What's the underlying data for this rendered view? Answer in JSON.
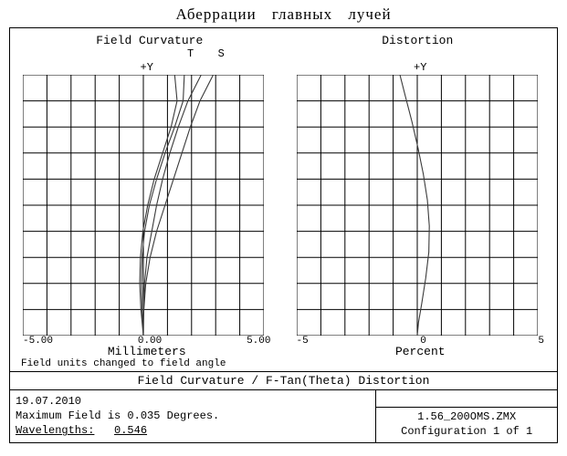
{
  "page_title": "Аберрации главных лучей",
  "outer_frame": {
    "border_color": "#000000",
    "background": "#ffffff"
  },
  "left_chart": {
    "title": "Field Curvature",
    "y_label": "+Y",
    "t_label": "T",
    "s_label": "S",
    "grid": {
      "cols": 10,
      "rows": 10,
      "line_color": "#000000"
    },
    "xlim": [
      -5.0,
      5.0
    ],
    "ylim_field_fraction": [
      0,
      1
    ],
    "x_ticks": [
      "-5.00",
      "0.00",
      "5.00"
    ],
    "x_axis_label": "Millimeters",
    "curves": {
      "T_inner": {
        "color": "#3a3a3a",
        "points": [
          [
            0.0,
            0
          ],
          [
            0.0,
            0.1
          ],
          [
            0.05,
            0.2
          ],
          [
            0.15,
            0.3
          ],
          [
            0.35,
            0.4
          ],
          [
            0.55,
            0.5
          ],
          [
            0.8,
            0.6
          ],
          [
            1.1,
            0.7
          ],
          [
            1.45,
            0.8
          ],
          [
            1.85,
            0.9
          ],
          [
            2.4,
            1.0
          ]
        ]
      },
      "T_outer": {
        "color": "#3a3a3a",
        "points": [
          [
            0.0,
            0
          ],
          [
            0.02,
            0.1
          ],
          [
            0.1,
            0.2
          ],
          [
            0.28,
            0.3
          ],
          [
            0.55,
            0.4
          ],
          [
            0.9,
            0.5
          ],
          [
            1.25,
            0.6
          ],
          [
            1.6,
            0.7
          ],
          [
            1.95,
            0.8
          ],
          [
            2.35,
            0.9
          ],
          [
            2.9,
            1.0
          ]
        ]
      },
      "S_inner": {
        "color": "#3a3a3a",
        "points": [
          [
            0.0,
            0
          ],
          [
            -0.05,
            0.1
          ],
          [
            -0.08,
            0.2
          ],
          [
            -0.05,
            0.3
          ],
          [
            0.05,
            0.4
          ],
          [
            0.25,
            0.5
          ],
          [
            0.55,
            0.6
          ],
          [
            0.9,
            0.7
          ],
          [
            1.3,
            0.8
          ],
          [
            1.65,
            0.9
          ],
          [
            1.7,
            1.0
          ]
        ]
      },
      "S_outer": {
        "color": "#3a3a3a",
        "points": [
          [
            0.0,
            0
          ],
          [
            -0.1,
            0.1
          ],
          [
            -0.15,
            0.2
          ],
          [
            -0.12,
            0.3
          ],
          [
            -0.02,
            0.4
          ],
          [
            0.18,
            0.5
          ],
          [
            0.45,
            0.6
          ],
          [
            0.8,
            0.7
          ],
          [
            1.15,
            0.8
          ],
          [
            1.4,
            0.9
          ],
          [
            1.3,
            1.0
          ]
        ]
      }
    }
  },
  "right_chart": {
    "title": "Distortion",
    "y_label": "+Y",
    "grid": {
      "cols": 10,
      "rows": 10,
      "line_color": "#000000"
    },
    "xlim": [
      -5,
      5
    ],
    "ylim_field_fraction": [
      0,
      1
    ],
    "x_ticks": [
      "-5",
      "0",
      "5"
    ],
    "x_axis_label": "Percent",
    "curve": {
      "color": "#3a3a3a",
      "points": [
        [
          0.0,
          0
        ],
        [
          0.05,
          0.05
        ],
        [
          0.18,
          0.12
        ],
        [
          0.35,
          0.22
        ],
        [
          0.48,
          0.32
        ],
        [
          0.5,
          0.42
        ],
        [
          0.42,
          0.52
        ],
        [
          0.25,
          0.62
        ],
        [
          0.03,
          0.72
        ],
        [
          -0.22,
          0.82
        ],
        [
          -0.5,
          0.92
        ],
        [
          -0.72,
          1.0
        ]
      ]
    }
  },
  "units_note": "Field units changed to field angle",
  "section_title": "Field Curvature / F-Tan(Theta) Distortion",
  "footer": {
    "date": "19.07.2010",
    "max_field_line": "Maximum Field is 0.035 Degrees.",
    "wavelengths_label": "Wavelengths:",
    "wavelengths_value": "0.546",
    "filename": "1.56_200OMS.ZMX",
    "config": "Configuration 1 of 1"
  },
  "fonts": {
    "mono": "Courier New",
    "title": "Times New Roman"
  }
}
